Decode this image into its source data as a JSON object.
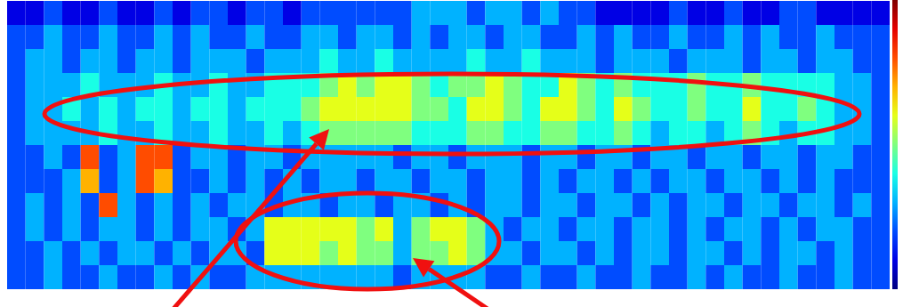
{
  "chart_data": {
    "type": "heatmap",
    "tick_labels": false,
    "zlim": [
      0,
      10
    ],
    "cells": [
      [
        1,
        1,
        2,
        1,
        1,
        2,
        1,
        1,
        2,
        1,
        2,
        2,
        1,
        2,
        2,
        1,
        2,
        2,
        2,
        2,
        2,
        2,
        3,
        3,
        3,
        2,
        3,
        3,
        2,
        3,
        2,
        2,
        1,
        1,
        1,
        1,
        2,
        1,
        1,
        2,
        1,
        1,
        2,
        2,
        1,
        1,
        1,
        1
      ],
      [
        2,
        2,
        3,
        2,
        2,
        3,
        2,
        2,
        3,
        2,
        3,
        2,
        2,
        3,
        2,
        2,
        3,
        3,
        2,
        3,
        3,
        2,
        3,
        2,
        3,
        3,
        2,
        3,
        3,
        2,
        2,
        3,
        2,
        3,
        2,
        2,
        3,
        2,
        2,
        3,
        2,
        3,
        2,
        2,
        3,
        2,
        2,
        2
      ],
      [
        2,
        3,
        3,
        2,
        3,
        3,
        2,
        3,
        3,
        2,
        3,
        3,
        3,
        2,
        3,
        3,
        3,
        4,
        3,
        3,
        4,
        3,
        3,
        3,
        3,
        4,
        3,
        3,
        4,
        3,
        3,
        3,
        2,
        3,
        3,
        3,
        2,
        3,
        3,
        3,
        2,
        3,
        3,
        2,
        3,
        3,
        2,
        2
      ],
      [
        2,
        3,
        3,
        3,
        4,
        3,
        3,
        3,
        4,
        3,
        3,
        4,
        3,
        3,
        4,
        4,
        4,
        5,
        6,
        5,
        6,
        6,
        5,
        4,
        5,
        5,
        6,
        5,
        4,
        4,
        6,
        5,
        4,
        5,
        4,
        4,
        4,
        5,
        4,
        4,
        5,
        4,
        4,
        4,
        4,
        3,
        3,
        2
      ],
      [
        2,
        3,
        3,
        4,
        3,
        4,
        3,
        4,
        4,
        3,
        4,
        4,
        3,
        4,
        4,
        4,
        5,
        6,
        6,
        6,
        6,
        6,
        5,
        5,
        4,
        6,
        6,
        5,
        4,
        6,
        6,
        5,
        4,
        6,
        5,
        4,
        4,
        5,
        4,
        4,
        6,
        4,
        4,
        5,
        4,
        3,
        3,
        2
      ],
      [
        2,
        3,
        3,
        3,
        3,
        4,
        3,
        3,
        4,
        3,
        3,
        4,
        3,
        3,
        4,
        3,
        4,
        5,
        5,
        5,
        5,
        5,
        4,
        4,
        4,
        5,
        5,
        4,
        4,
        5,
        5,
        4,
        4,
        5,
        4,
        3,
        4,
        4,
        3,
        4,
        5,
        4,
        3,
        4,
        4,
        3,
        3,
        2
      ],
      [
        2,
        2,
        3,
        2,
        8,
        2,
        3,
        8,
        8,
        2,
        3,
        3,
        2,
        3,
        3,
        2,
        3,
        3,
        3,
        3,
        3,
        2,
        3,
        3,
        2,
        3,
        3,
        3,
        2,
        3,
        3,
        2,
        3,
        3,
        2,
        3,
        3,
        2,
        3,
        3,
        2,
        3,
        3,
        2,
        3,
        3,
        2,
        2
      ],
      [
        2,
        2,
        2,
        3,
        7,
        2,
        3,
        8,
        7,
        2,
        2,
        3,
        2,
        3,
        2,
        3,
        2,
        3,
        3,
        2,
        3,
        3,
        2,
        3,
        3,
        2,
        3,
        3,
        2,
        3,
        2,
        3,
        3,
        2,
        3,
        2,
        3,
        3,
        2,
        3,
        3,
        2,
        3,
        2,
        3,
        2,
        2,
        2
      ],
      [
        2,
        3,
        2,
        3,
        2,
        8,
        3,
        2,
        3,
        2,
        3,
        2,
        3,
        3,
        2,
        3,
        3,
        2,
        3,
        3,
        2,
        3,
        3,
        2,
        3,
        2,
        3,
        3,
        2,
        3,
        3,
        2,
        3,
        3,
        2,
        3,
        2,
        3,
        3,
        2,
        3,
        3,
        2,
        3,
        3,
        2,
        3,
        2
      ],
      [
        2,
        3,
        2,
        3,
        2,
        3,
        3,
        2,
        3,
        2,
        3,
        3,
        2,
        3,
        6,
        6,
        6,
        6,
        6,
        5,
        6,
        3,
        5,
        6,
        6,
        5,
        3,
        2,
        3,
        3,
        2,
        3,
        3,
        2,
        3,
        3,
        2,
        3,
        2,
        3,
        3,
        2,
        3,
        2,
        3,
        3,
        2,
        2
      ],
      [
        2,
        2,
        3,
        2,
        3,
        2,
        3,
        3,
        2,
        3,
        2,
        3,
        3,
        2,
        6,
        6,
        6,
        5,
        6,
        5,
        5,
        3,
        5,
        5,
        6,
        5,
        3,
        3,
        2,
        3,
        3,
        2,
        3,
        2,
        3,
        3,
        2,
        3,
        3,
        2,
        3,
        2,
        3,
        3,
        2,
        3,
        2,
        2
      ],
      [
        2,
        2,
        3,
        2,
        2,
        3,
        2,
        2,
        3,
        2,
        3,
        2,
        2,
        3,
        3,
        3,
        3,
        3,
        3,
        3,
        3,
        2,
        3,
        3,
        3,
        3,
        2,
        2,
        3,
        2,
        2,
        3,
        2,
        2,
        3,
        2,
        2,
        3,
        2,
        3,
        2,
        2,
        3,
        2,
        2,
        3,
        2,
        2
      ]
    ]
  }
}
